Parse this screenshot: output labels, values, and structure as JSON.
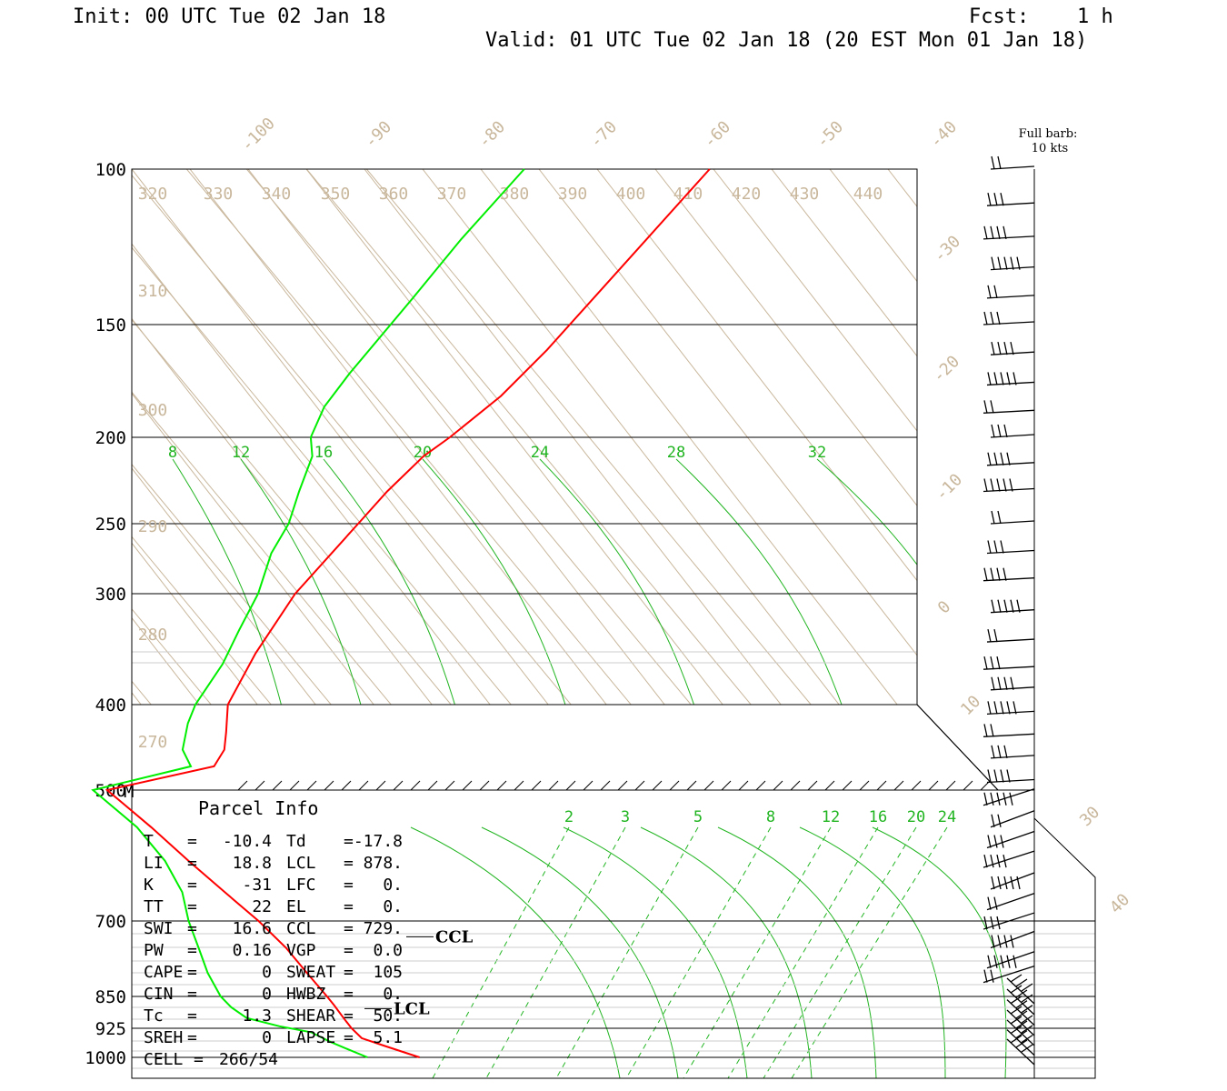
{
  "header": {
    "init": "Init: 00 UTC Tue 02 Jan 18",
    "fcst_label": "Fcst:",
    "fcst_value": "1 h",
    "valid": "Valid: 01 UTC Tue 02 Jan 18 (20 EST Mon 01 Jan 18)"
  },
  "legend": {
    "barb_line1": "Full barb:",
    "barb_line2": "10 kts"
  },
  "colors": {
    "temperature": "#ff0000",
    "dewpoint": "#00ee00",
    "isotherm": "#c9b79c",
    "mixing_ratio": "#22b522",
    "frame": "#000000"
  },
  "chart_data": {
    "type": "line",
    "subtype": "skew-T log-P sounding",
    "pressure_axis_labels": [
      "100",
      "150",
      "200",
      "250",
      "300",
      "400",
      "500",
      "700",
      "850",
      "925",
      "1000"
    ],
    "pressure_levels": [
      100,
      150,
      200,
      250,
      300,
      400,
      500,
      700,
      850,
      925,
      1000
    ],
    "mid_marker": "M",
    "isotherm_labels": [
      "-100",
      "-90",
      "-80",
      "-70",
      "-60",
      "-50",
      "-40",
      "-30",
      "-20",
      "-10",
      "0",
      "10",
      "30",
      "40"
    ],
    "theta_e_labels": [
      "320",
      "330",
      "340",
      "350",
      "360",
      "370",
      "380",
      "390",
      "400",
      "410",
      "420",
      "430",
      "440",
      "310",
      "300",
      "290",
      "280",
      "270"
    ],
    "mixing_ratio_labels_upper": [
      "8",
      "12",
      "16",
      "20",
      "24",
      "28",
      "32"
    ],
    "mixing_ratio_labels_lower": [
      "2",
      "3",
      "5",
      "8",
      "12",
      "16",
      "20",
      "24"
    ],
    "series": [
      {
        "name": "Temperature",
        "color": "#ff0000",
        "points": [
          [
            1000,
            8
          ],
          [
            970,
            2
          ],
          [
            950,
            -2
          ],
          [
            925,
            -3
          ],
          [
            900,
            -3.5
          ],
          [
            870,
            -4
          ],
          [
            850,
            -4.5
          ],
          [
            800,
            -6
          ],
          [
            750,
            -7.5
          ],
          [
            700,
            -10.2
          ],
          [
            650,
            -14
          ],
          [
            600,
            -18
          ],
          [
            550,
            -22
          ],
          [
            500,
            -27
          ],
          [
            470,
            -30
          ],
          [
            450,
            -31
          ],
          [
            430,
            -34
          ],
          [
            400,
            -39
          ],
          [
            350,
            -43
          ],
          [
            300,
            -46
          ],
          [
            250,
            -46
          ],
          [
            230,
            -46
          ],
          [
            210,
            -45
          ],
          [
            200,
            -43
          ],
          [
            180,
            -40
          ],
          [
            160,
            -39
          ],
          [
            140,
            -39
          ],
          [
            120,
            -39
          ],
          [
            100,
            -39
          ]
        ]
      },
      {
        "name": "Dewpoint",
        "color": "#00ee00",
        "points": [
          [
            1000,
            -3
          ],
          [
            980,
            -6
          ],
          [
            960,
            -9
          ],
          [
            935,
            -12
          ],
          [
            920,
            -18
          ],
          [
            900,
            -24
          ],
          [
            875,
            -26
          ],
          [
            850,
            -27
          ],
          [
            800,
            -27
          ],
          [
            750,
            -26
          ],
          [
            700,
            -25
          ],
          [
            650,
            -23
          ],
          [
            600,
            -23
          ],
          [
            550,
            -25
          ],
          [
            500,
            -30
          ],
          [
            470,
            -35
          ],
          [
            450,
            -40
          ],
          [
            420,
            -44
          ],
          [
            400,
            -46
          ],
          [
            360,
            -48
          ],
          [
            330,
            -51
          ],
          [
            300,
            -54
          ],
          [
            270,
            -59
          ],
          [
            250,
            -61
          ],
          [
            230,
            -65
          ],
          [
            210,
            -69
          ],
          [
            200,
            -73
          ],
          [
            185,
            -76
          ],
          [
            170,
            -77
          ],
          [
            140,
            -78
          ],
          [
            120,
            -79
          ],
          [
            100,
            -79
          ]
        ]
      }
    ],
    "markers": [
      {
        "label": "CCL",
        "pressure": 729
      },
      {
        "label": "LCL",
        "pressure": 878
      }
    ],
    "wind_barbs": [
      {
        "p": 100
      },
      {
        "p": 110
      },
      {
        "p": 120
      },
      {
        "p": 130
      },
      {
        "p": 140
      },
      {
        "p": 150
      },
      {
        "p": 162
      },
      {
        "p": 175
      },
      {
        "p": 188
      },
      {
        "p": 200
      },
      {
        "p": 215
      },
      {
        "p": 230
      },
      {
        "p": 250
      },
      {
        "p": 270
      },
      {
        "p": 290
      },
      {
        "p": 315
      },
      {
        "p": 340
      },
      {
        "p": 365
      },
      {
        "p": 385
      },
      {
        "p": 410
      },
      {
        "p": 435
      },
      {
        "p": 460
      },
      {
        "p": 490
      },
      {
        "p": 520
      },
      {
        "p": 550
      },
      {
        "p": 580
      },
      {
        "p": 610
      },
      {
        "p": 645
      },
      {
        "p": 680
      },
      {
        "p": 715
      },
      {
        "p": 750
      },
      {
        "p": 790
      },
      {
        "p": 820
      },
      {
        "p": 850
      },
      {
        "p": 875
      },
      {
        "p": 900
      },
      {
        "p": 925
      },
      {
        "p": 950
      },
      {
        "p": 975
      },
      {
        "p": 1000
      }
    ]
  },
  "parcel_info": {
    "title": "Parcel Info",
    "rows": [
      {
        "k1": "T",
        "e1": "=",
        "v1": "-10.4",
        "k2": "Td",
        "e2": "=",
        "v2": "-17.8"
      },
      {
        "k1": "LI",
        "e1": "=",
        "v1": "18.8",
        "k2": "LCL",
        "e2": "=",
        "v2": "878."
      },
      {
        "k1": "K",
        "e1": "=",
        "v1": "-31",
        "k2": "LFC",
        "e2": "=",
        "v2": "0."
      },
      {
        "k1": "TT",
        "e1": "=",
        "v1": "22",
        "k2": "EL",
        "e2": "=",
        "v2": "0."
      },
      {
        "k1": "SWI",
        "e1": "=",
        "v1": "16.6",
        "k2": "CCL",
        "e2": "=",
        "v2": "729."
      },
      {
        "k1": "PW",
        "e1": "=",
        "v1": "0.16",
        "k2": "VGP",
        "e2": "=",
        "v2": "0.0"
      },
      {
        "k1": "CAPE",
        "e1": "=",
        "v1": "0",
        "k2": "SWEAT",
        "e2": "=",
        "v2": "105"
      },
      {
        "k1": "CIN",
        "e1": "=",
        "v1": "0",
        "k2": "HWBZ",
        "e2": "=",
        "v2": "0."
      },
      {
        "k1": "Tc",
        "e1": "=",
        "v1": "1.3",
        "k2": "SHEAR",
        "e2": "=",
        "v2": "50."
      },
      {
        "k1": "SREH",
        "e1": "=",
        "v1": "0",
        "k2": "LAPSE",
        "e2": "=",
        "v2": "5.1"
      },
      {
        "k1": "CELL",
        "e1": "=",
        "v1": "266/54",
        "k2": "",
        "e2": "",
        "v2": ""
      }
    ]
  }
}
